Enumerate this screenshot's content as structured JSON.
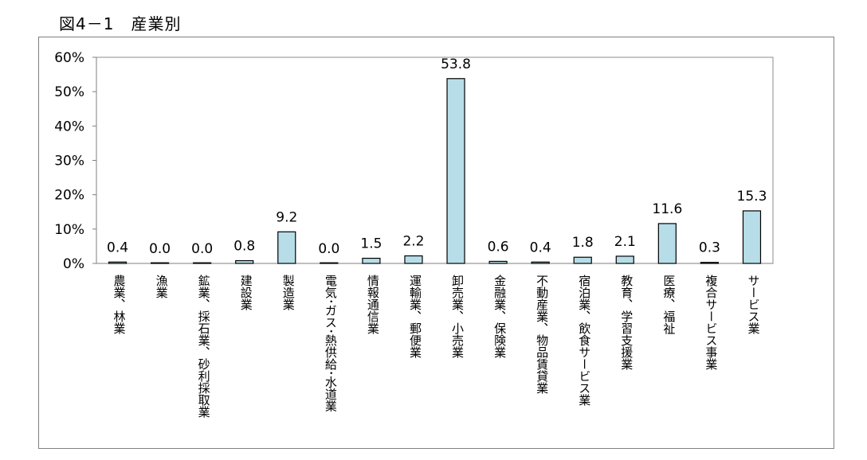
{
  "figure_title": "図4－1　産業別",
  "chart_data": {
    "type": "bar",
    "title": "",
    "xlabel": "",
    "ylabel": "",
    "ylim": [
      0,
      60
    ],
    "yticks": [
      "0%",
      "10%",
      "20%",
      "30%",
      "40%",
      "50%",
      "60%"
    ],
    "grid": false,
    "bar_color": "#b7dde8",
    "bar_edge_color": "#000000",
    "categories": [
      "農業、林業",
      "漁業",
      "鉱業、採石業、砂利採取業",
      "建設業",
      "製造業",
      "電気･ガス･熱供給･水道業",
      "情報通信業",
      "運輸業、郵便業",
      "卸売業、小売業",
      "金融業、保険業",
      "不動産業、物品賃貸業",
      "宿泊業、飲食サービス業",
      "教育、学習支援業",
      "医療、福祉",
      "複合サービス事業",
      "サービス業"
    ],
    "values": [
      0.4,
      0.0,
      0.0,
      0.8,
      9.2,
      0.0,
      1.5,
      2.2,
      53.8,
      0.6,
      0.4,
      1.8,
      2.1,
      11.6,
      0.3,
      15.3
    ],
    "value_labels": [
      "0.4",
      "0.0",
      "0.0",
      "0.8",
      "9.2",
      "0.0",
      "1.5",
      "2.2",
      "53.8",
      "0.6",
      "0.4",
      "1.8",
      "2.1",
      "11.6",
      "0.3",
      "15.3"
    ]
  }
}
